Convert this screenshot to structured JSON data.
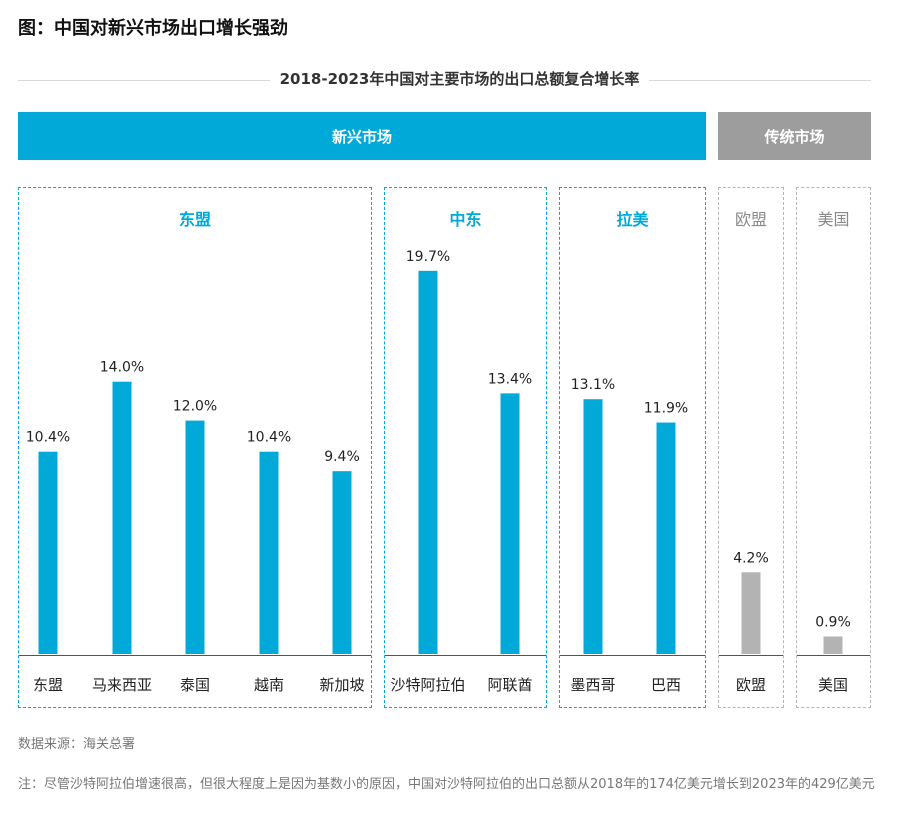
{
  "figure_title": "图：中国对新兴市场出口增长强劲",
  "chart_data": {
    "type": "bar",
    "title": "2018-2023年中国对主要市场的出口总额复合增长率",
    "bands": [
      {
        "label": "新兴市场",
        "color": "#00a9d8"
      },
      {
        "label": "传统市场",
        "color": "#9d9d9d"
      }
    ],
    "groups": [
      {
        "label": "东盟",
        "band": "新兴市场"
      },
      {
        "label": "中东",
        "band": "新兴市场"
      },
      {
        "label": "拉美",
        "band": "新兴市场"
      },
      {
        "label": "欧盟",
        "band": "传统市场"
      },
      {
        "label": "美国",
        "band": "传统市场"
      }
    ],
    "categories": [
      "东盟",
      "马来西亚",
      "泰国",
      "越南",
      "新加坡",
      "沙特阿拉伯",
      "阿联酋",
      "墨西哥",
      "巴西",
      "欧盟",
      "美国"
    ],
    "values": [
      10.4,
      14.0,
      12.0,
      10.4,
      9.4,
      19.7,
      13.4,
      13.1,
      11.9,
      4.2,
      0.9
    ],
    "value_labels": [
      "10.4%",
      "14.0%",
      "12.0%",
      "10.4%",
      "9.4%",
      "19.7%",
      "13.4%",
      "13.1%",
      "11.9%",
      "4.2%",
      "0.9%"
    ],
    "bar_groups": [
      "东盟",
      "东盟",
      "东盟",
      "东盟",
      "东盟",
      "中东",
      "中东",
      "拉美",
      "拉美",
      "欧盟",
      "美国"
    ],
    "colors": {
      "emerging": "#00a9d8",
      "traditional": "#b3b3b3"
    },
    "ylim": [
      0,
      20
    ]
  },
  "source": "数据来源：海关总署",
  "note": "注：尽管沙特阿拉伯增速很高，但很大程度上是因为基数小的原因，中国对沙特阿拉伯的出口总额从2018年的174亿美元增长到2023年的429亿美元"
}
